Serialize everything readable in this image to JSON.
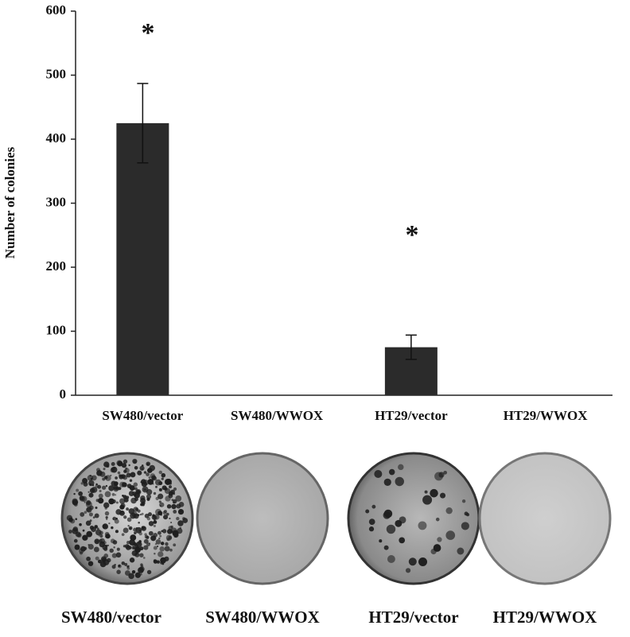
{
  "chart_data": {
    "type": "bar",
    "y_label": "Number of colonies",
    "categories": [
      "SW480/vector",
      "SW480/WWOX",
      "HT29/vector",
      "HT29/WWOX"
    ],
    "values": [
      425,
      0,
      75,
      0
    ],
    "errors": [
      62,
      null,
      19,
      null
    ],
    "color": "#2b2b2b",
    "ylim": [
      0,
      600
    ],
    "yticks": [
      0,
      100,
      200,
      300,
      400,
      500,
      600
    ],
    "annotations": [
      "*",
      "*"
    ]
  },
  "plate_labels": [
    "SW480/vector",
    "SW480/WWOX",
    "HT29/vector",
    "HT29/WWOX"
  ]
}
